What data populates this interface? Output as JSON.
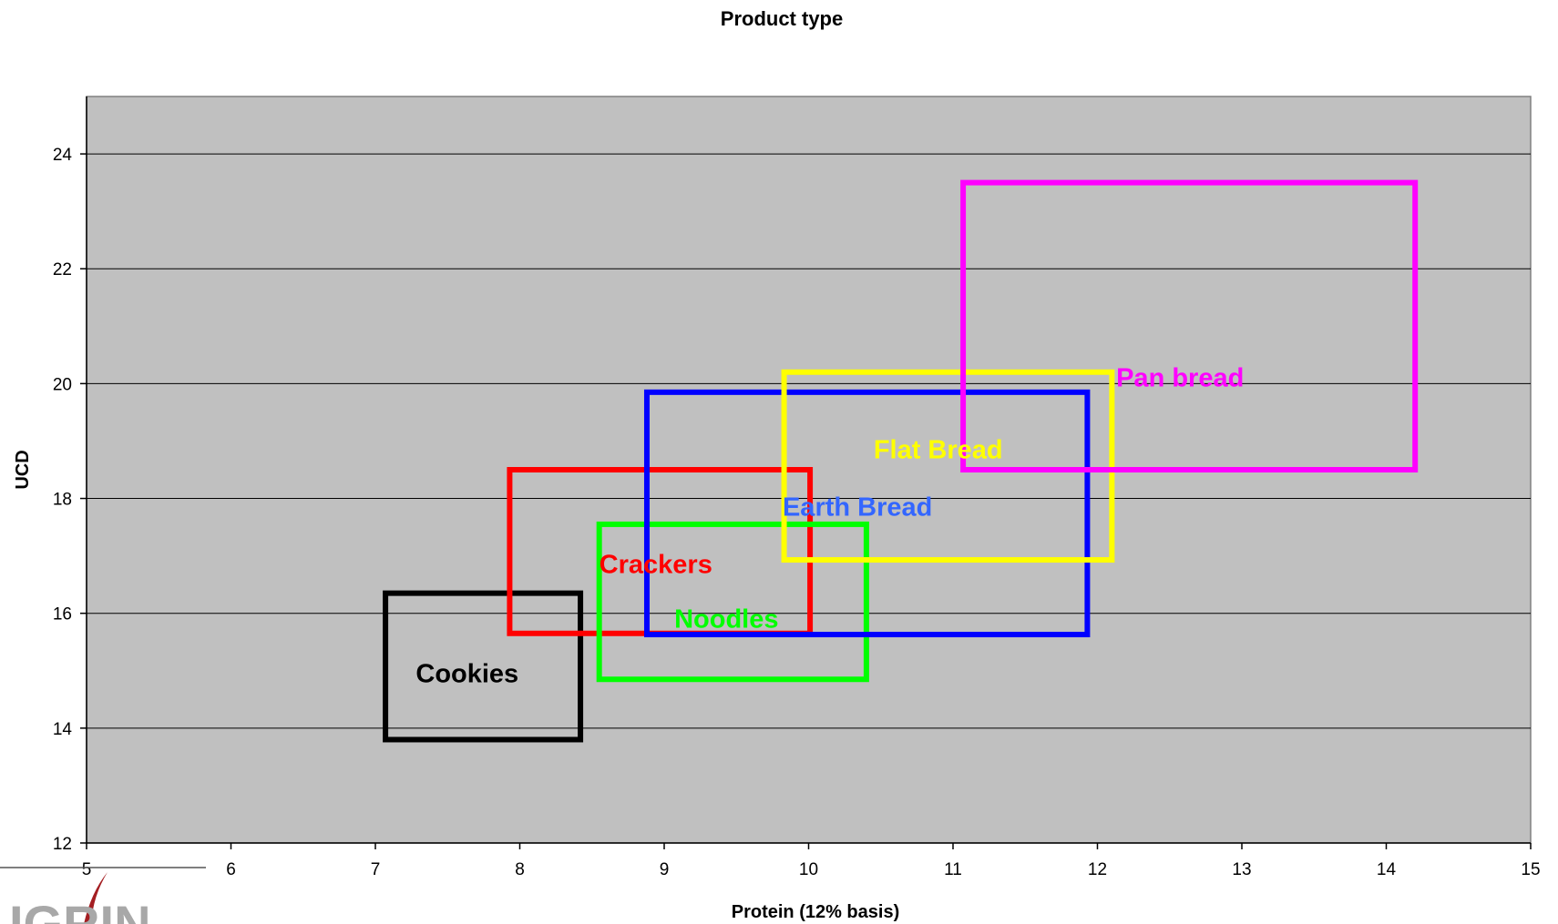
{
  "chart_data": {
    "type": "range-rectangles",
    "title": "Product type",
    "xlabel": "Protein (12% basis)",
    "ylabel": "UCD",
    "xlim": [
      5,
      15
    ],
    "ylim": [
      12,
      25
    ],
    "xticks": [
      5,
      6,
      7,
      8,
      9,
      10,
      11,
      12,
      13,
      14,
      15
    ],
    "yticks": [
      12,
      14,
      16,
      18,
      20,
      22,
      24
    ],
    "grid": "horizontal",
    "plot_background": "#c0c0c0",
    "series": [
      {
        "name": "Cookies",
        "x": [
          7.07,
          8.42
        ],
        "y": [
          13.8,
          16.35
        ],
        "color": "#000000",
        "label_color": "#000000",
        "label_at": [
          7.28,
          14.8
        ]
      },
      {
        "name": "Crackers",
        "x": [
          7.93,
          10.01
        ],
        "y": [
          15.65,
          18.5
        ],
        "color": "#ff0000",
        "label_color": "#ff0000",
        "label_at": [
          8.55,
          16.7
        ]
      },
      {
        "name": "Noodles",
        "x": [
          8.55,
          10.4
        ],
        "y": [
          14.85,
          17.55
        ],
        "color": "#00ff00",
        "label_color": "#00ff00",
        "label_at": [
          9.07,
          15.75
        ]
      },
      {
        "name": "Earth Bread",
        "x": [
          8.88,
          11.93
        ],
        "y": [
          15.63,
          19.85
        ],
        "color": "#0000ff",
        "label_color": "#3366ff",
        "label_at": [
          9.82,
          17.7
        ]
      },
      {
        "name": "Flat Bread",
        "x": [
          9.83,
          12.1
        ],
        "y": [
          16.93,
          20.2
        ],
        "color": "#ffff00",
        "label_color": "#ffff00",
        "label_at": [
          10.45,
          18.7
        ]
      },
      {
        "name": "Pan bread",
        "x": [
          11.07,
          14.2
        ],
        "y": [
          18.5,
          23.5
        ],
        "color": "#ff00ff",
        "label_color": "#ff00ff",
        "label_at": [
          12.13,
          19.95
        ]
      }
    ]
  },
  "logo": {
    "text": "IGRIN"
  }
}
